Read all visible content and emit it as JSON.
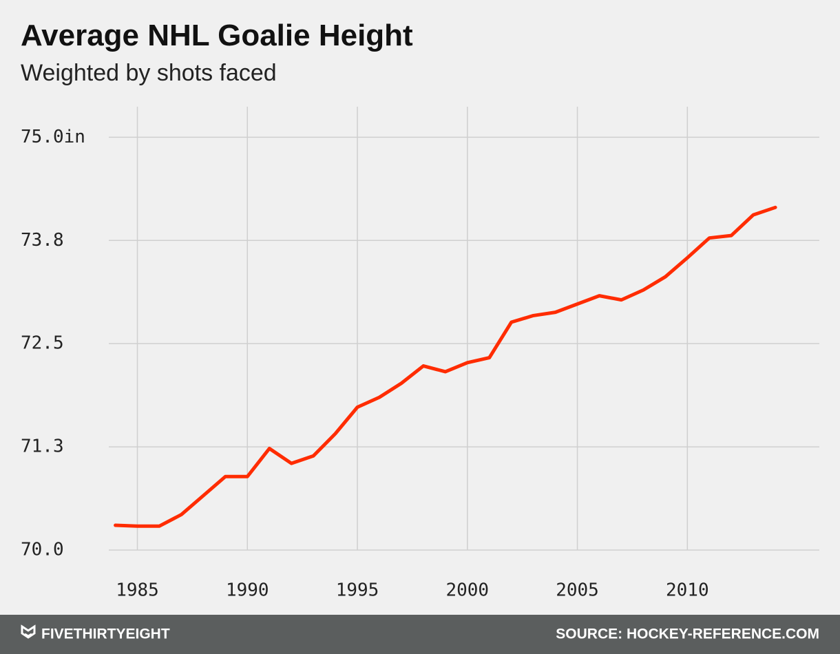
{
  "chart_data": {
    "type": "line",
    "title": "Average NHL Goalie Height",
    "subtitle": "Weighted by shots faced",
    "x": [
      1984,
      1985,
      1986,
      1987,
      1988,
      1989,
      1990,
      1991,
      1992,
      1993,
      1994,
      1995,
      1996,
      1997,
      1998,
      1999,
      2000,
      2001,
      2002,
      2003,
      2004,
      2005,
      2006,
      2007,
      2008,
      2009,
      2010,
      2011,
      2012,
      2013,
      2014
    ],
    "values": [
      70.3,
      70.29,
      70.29,
      70.43,
      70.66,
      70.89,
      70.89,
      71.23,
      71.05,
      71.14,
      71.41,
      71.73,
      71.85,
      72.02,
      72.23,
      72.16,
      72.27,
      72.33,
      72.76,
      72.84,
      72.88,
      72.98,
      73.08,
      73.03,
      73.15,
      73.31,
      73.54,
      73.78,
      73.81,
      74.06,
      74.15
    ],
    "color": "#ff2c00",
    "xlim": [
      1983.7,
      2016
    ],
    "xticks": [
      1985,
      1990,
      1995,
      2000,
      2005,
      2010
    ],
    "ylim": [
      70,
      75.37
    ],
    "yticks": [
      {
        "value": 70,
        "label": "70.0"
      },
      {
        "value": 71.25,
        "label": "71.3"
      },
      72.5,
      {
        "value": 73.75,
        "label": "73.8"
      },
      {
        "value": 75,
        "label": "75.0in"
      }
    ],
    "grid": true
  },
  "footer": {
    "brand": "FIVETHIRTYEIGHT",
    "source": "SOURCE: HOCKEY-REFERENCE.COM"
  }
}
